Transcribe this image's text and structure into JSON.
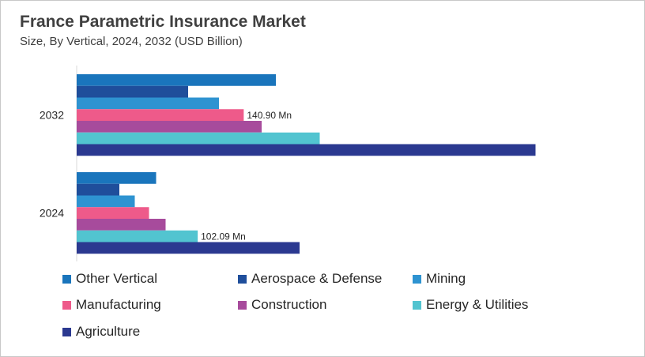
{
  "title": "France Parametric Insurance Market",
  "subtitle": "Size, By Vertical, 2024, 2032 (USD Billion)",
  "chart_data": {
    "type": "bar",
    "orientation": "horizontal",
    "title": "France Parametric Insurance Market",
    "subtitle": "Size, By Vertical, 2024, 2032 (USD Billion)",
    "categories": [
      "2032",
      "2024"
    ],
    "xlim": [
      0,
      400
    ],
    "grid": false,
    "legend_position": "bottom",
    "series": [
      {
        "name": "Other Vertical",
        "color": "#1a75bc",
        "values": [
          168,
          67
        ]
      },
      {
        "name": "Aerospace & Defense",
        "color": "#1f4e9b",
        "values": [
          94,
          36
        ]
      },
      {
        "name": "Mining",
        "color": "#2e93d1",
        "values": [
          120,
          49
        ]
      },
      {
        "name": "Manufacturing",
        "color": "#ee5a8a",
        "values": [
          140.9,
          61
        ]
      },
      {
        "name": "Construction",
        "color": "#a74b9c",
        "values": [
          156,
          75
        ]
      },
      {
        "name": "Energy & Utilities",
        "color": "#52c4d0",
        "values": [
          205,
          102.09
        ]
      },
      {
        "name": "Agriculture",
        "color": "#2b3990",
        "values": [
          387,
          188
        ]
      }
    ],
    "annotations": [
      {
        "category": "2032",
        "series": "Manufacturing",
        "text": "140.90  Mn"
      },
      {
        "category": "2024",
        "series": "Energy & Utilities",
        "text": "102.09  Mn"
      }
    ]
  }
}
